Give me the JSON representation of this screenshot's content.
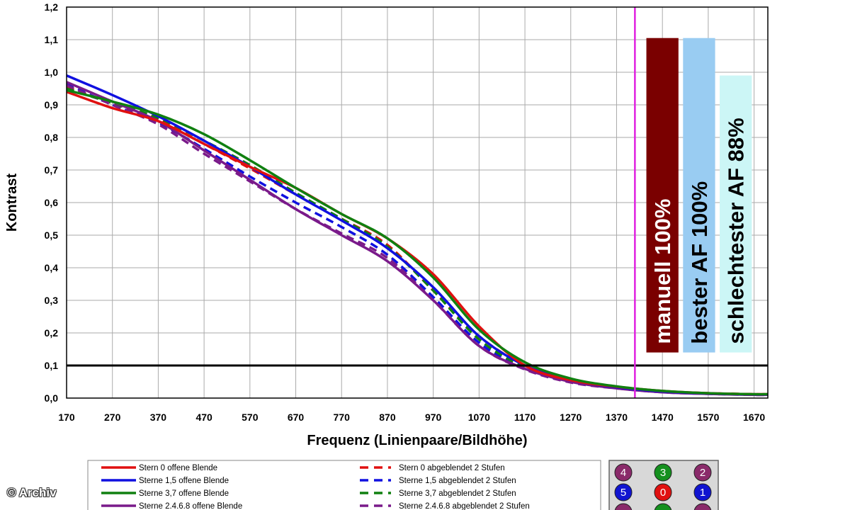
{
  "watermark": "© Archiv",
  "chart_data": {
    "type": "line",
    "xlabel": "Frequenz (Linienpaare/Bildhöhe)",
    "ylabel": "Kontrast",
    "xlim": [
      170,
      1700
    ],
    "ylim": [
      0,
      1.2
    ],
    "x_ticks": [
      "170",
      "270",
      "370",
      "470",
      "570",
      "670",
      "770",
      "870",
      "970",
      "1070",
      "1170",
      "1270",
      "1370",
      "1470",
      "1570",
      "1670"
    ],
    "y_ticks": [
      "0,0",
      "0,1",
      "0,2",
      "0,3",
      "0,4",
      "0,5",
      "0,6",
      "0,7",
      "0,8",
      "0,9",
      "1,0",
      "1,1",
      "1,2"
    ],
    "grid": true,
    "reference_line": {
      "y": 0.1,
      "color": "#000000"
    },
    "vertical_marker": {
      "x": 1410,
      "color": "#e020e0"
    },
    "bars": [
      {
        "label": "manuell 100%",
        "x_start": 1435,
        "x_end": 1505,
        "top": 1.105,
        "bottom": 0.14,
        "fill": "#7a0000",
        "text_color": "#ffffff"
      },
      {
        "label": "bester AF 100%",
        "x_start": 1515,
        "x_end": 1585,
        "top": 1.105,
        "bottom": 0.14,
        "fill": "#99ccf2",
        "text_color": "#000000"
      },
      {
        "label": "schlechtester AF 88%",
        "x_start": 1595,
        "x_end": 1665,
        "top": 0.99,
        "bottom": 0.14,
        "fill": "#ccf6f6",
        "text_color": "#000000"
      }
    ],
    "series": [
      {
        "name": "Stern 0 offene Blende",
        "color": "#e01010",
        "dash": false,
        "x": [
          170,
          270,
          370,
          470,
          570,
          670,
          770,
          870,
          970,
          1070,
          1170,
          1270,
          1370,
          1470,
          1570,
          1670,
          1700
        ],
        "y": [
          0.94,
          0.89,
          0.85,
          0.78,
          0.71,
          0.645,
          0.565,
          0.49,
          0.38,
          0.22,
          0.1,
          0.055,
          0.035,
          0.022,
          0.015,
          0.012,
          0.012
        ]
      },
      {
        "name": "Sterne 1,5 offene Blende",
        "color": "#1010e0",
        "dash": false,
        "x": [
          170,
          270,
          370,
          470,
          570,
          670,
          770,
          870,
          970,
          1070,
          1170,
          1270,
          1370,
          1470,
          1570,
          1670,
          1700
        ],
        "y": [
          0.99,
          0.93,
          0.865,
          0.79,
          0.71,
          0.625,
          0.545,
          0.46,
          0.34,
          0.19,
          0.1,
          0.055,
          0.033,
          0.02,
          0.014,
          0.011,
          0.011
        ]
      },
      {
        "name": "Sterne 3,7 offene Blende",
        "color": "#108010",
        "dash": false,
        "x": [
          170,
          270,
          370,
          470,
          570,
          670,
          770,
          870,
          970,
          1070,
          1170,
          1270,
          1370,
          1470,
          1570,
          1670,
          1700
        ],
        "y": [
          0.945,
          0.91,
          0.87,
          0.81,
          0.73,
          0.645,
          0.565,
          0.49,
          0.37,
          0.21,
          0.11,
          0.06,
          0.036,
          0.022,
          0.015,
          0.012,
          0.012
        ]
      },
      {
        "name": "Sterne 2,4,6,8 offene Blende",
        "color": "#7a1a8a",
        "dash": false,
        "x": [
          170,
          270,
          370,
          470,
          570,
          670,
          770,
          870,
          970,
          1070,
          1170,
          1270,
          1370,
          1470,
          1570,
          1670,
          1700
        ],
        "y": [
          0.97,
          0.91,
          0.85,
          0.76,
          0.67,
          0.58,
          0.5,
          0.42,
          0.3,
          0.16,
          0.09,
          0.05,
          0.03,
          0.018,
          0.013,
          0.01,
          0.01
        ]
      },
      {
        "name": "Stern 0 abgeblendet 2 Stufen",
        "color": "#e01010",
        "dash": true,
        "x": [
          170,
          270,
          370,
          470,
          570,
          670,
          770,
          870,
          970,
          1070,
          1170,
          1270,
          1370,
          1470,
          1570,
          1670,
          1700
        ],
        "y": [
          0.955,
          0.905,
          0.855,
          0.78,
          0.705,
          0.625,
          0.55,
          0.47,
          0.33,
          0.19,
          0.1,
          0.055,
          0.034,
          0.021,
          0.015,
          0.012,
          0.012
        ]
      },
      {
        "name": "Sterne 1,5 abgeblendet 2 Stufen",
        "color": "#1010e0",
        "dash": true,
        "x": [
          170,
          270,
          370,
          470,
          570,
          670,
          770,
          870,
          970,
          1070,
          1170,
          1270,
          1370,
          1470,
          1570,
          1670,
          1700
        ],
        "y": [
          0.965,
          0.9,
          0.845,
          0.765,
          0.68,
          0.6,
          0.525,
          0.44,
          0.31,
          0.17,
          0.09,
          0.05,
          0.031,
          0.019,
          0.014,
          0.011,
          0.011
        ]
      },
      {
        "name": "Sterne 3,7 abgeblendet 2 Stufen",
        "color": "#108010",
        "dash": true,
        "x": [
          170,
          270,
          370,
          470,
          570,
          670,
          770,
          870,
          970,
          1070,
          1170,
          1270,
          1370,
          1470,
          1570,
          1670,
          1700
        ],
        "y": [
          0.95,
          0.905,
          0.86,
          0.79,
          0.715,
          0.63,
          0.55,
          0.465,
          0.33,
          0.18,
          0.095,
          0.052,
          0.032,
          0.02,
          0.014,
          0.011,
          0.011
        ]
      },
      {
        "name": "Sterne 2,4,6,8 abgeblendet 2 Stufen",
        "color": "#7a1a8a",
        "dash": true,
        "x": [
          170,
          270,
          370,
          470,
          570,
          670,
          770,
          870,
          970,
          1070,
          1170,
          1270,
          1370,
          1470,
          1570,
          1670,
          1700
        ],
        "y": [
          0.96,
          0.9,
          0.84,
          0.75,
          0.665,
          0.58,
          0.505,
          0.43,
          0.3,
          0.16,
          0.088,
          0.048,
          0.03,
          0.018,
          0.013,
          0.01,
          0.01
        ]
      }
    ],
    "legend": {
      "placement": "bottom",
      "solid_names": [
        "Stern 0 offene Blende",
        "Sterne 1,5 offene Blende",
        "Sterne 3,7 offene Blende",
        "Sterne 2.4.6.8 offene Blende"
      ],
      "dashed_names": [
        "Stern 0 abgeblendet 2 Stufen",
        "Sterne 1,5 abgeblendet 2 Stufen",
        "Sterne 3,7 abgeblendet 2 Stufen",
        "Sterne 2.4.6.8 abgeblendet 2 Stufen"
      ],
      "colors": [
        "#e01010",
        "#1010e0",
        "#108010",
        "#7a1a8a"
      ]
    },
    "star_map": {
      "cells": [
        {
          "label": "4",
          "fill": "#8a2a6a"
        },
        {
          "label": "3",
          "fill": "#14901e"
        },
        {
          "label": "2",
          "fill": "#8a2a6a"
        },
        {
          "label": "5",
          "fill": "#1014d0"
        },
        {
          "label": "0",
          "fill": "#e01010"
        },
        {
          "label": "1",
          "fill": "#1014d0"
        },
        {
          "label": "",
          "fill": "#8a2a6a"
        },
        {
          "label": "",
          "fill": "#14901e"
        },
        {
          "label": "",
          "fill": "#8a2a6a"
        }
      ]
    }
  }
}
